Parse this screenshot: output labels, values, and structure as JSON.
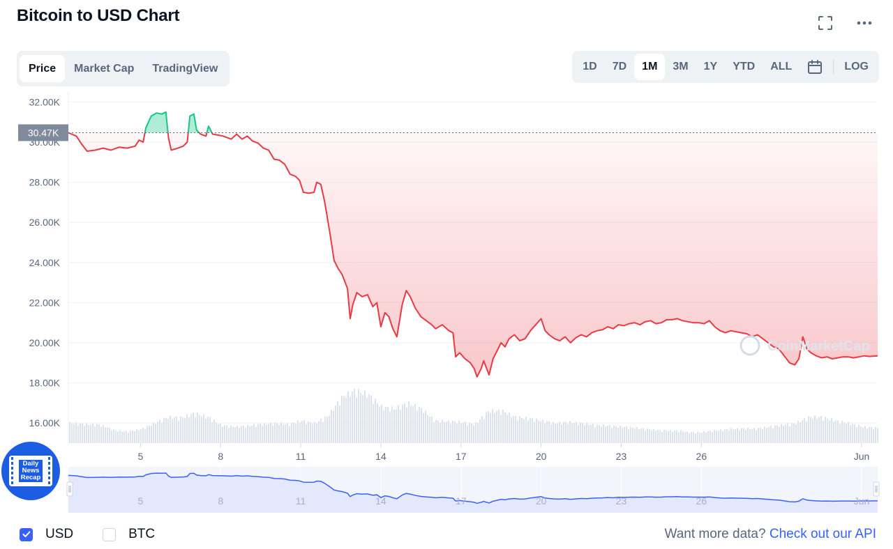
{
  "title": "Bitcoin to USD Chart",
  "header_icons": [
    "fullscreen-icon",
    "more-icon"
  ],
  "tabs": [
    "Price",
    "Market Cap",
    "TradingView"
  ],
  "active_tab": "Price",
  "ranges": [
    "1D",
    "7D",
    "1M",
    "3M",
    "1Y",
    "YTD",
    "ALL"
  ],
  "active_range": "1M",
  "log_label": "LOG",
  "colors": {
    "up": "#16c784",
    "down": "#ea3943",
    "accent": "#3861fb",
    "navigator_line": "#3861fb",
    "navigator_fill": "#e3e8fd"
  },
  "chart_data": {
    "type": "line",
    "title": "",
    "xlabel": "",
    "ylabel": "",
    "ylim": [
      15000,
      32500
    ],
    "yticks": [
      "16.00K",
      "18.00K",
      "20.00K",
      "22.00K",
      "24.00K",
      "26.00K",
      "28.00K",
      "30.00K",
      "32.00K"
    ],
    "ytick_values": [
      16000,
      18000,
      20000,
      22000,
      24000,
      26000,
      28000,
      30000,
      32000
    ],
    "xlim": [
      2.3,
      32.6
    ],
    "xticks": [
      "5",
      "8",
      "11",
      "14",
      "17",
      "20",
      "23",
      "26",
      "Jun"
    ],
    "xtick_values": [
      5,
      8,
      11,
      14,
      17,
      20,
      23,
      26,
      32
    ],
    "reference_value": 30470,
    "reference_label": "30.47K",
    "series": [
      {
        "values": [
          [
            2.3,
            30470
          ],
          [
            2.6,
            30300
          ],
          [
            2.8,
            29900
          ],
          [
            3.0,
            29550
          ],
          [
            3.3,
            29600
          ],
          [
            3.6,
            29700
          ],
          [
            3.9,
            29600
          ],
          [
            4.2,
            29750
          ],
          [
            4.5,
            29700
          ],
          [
            4.8,
            29800
          ],
          [
            4.95,
            30100
          ],
          [
            5.1,
            30000
          ],
          [
            5.2,
            30700
          ],
          [
            5.4,
            31300
          ],
          [
            5.6,
            31450
          ],
          [
            5.8,
            31400
          ],
          [
            5.95,
            31500
          ],
          [
            6.05,
            30200
          ],
          [
            6.15,
            29600
          ],
          [
            6.4,
            29700
          ],
          [
            6.6,
            29800
          ],
          [
            6.75,
            30000
          ],
          [
            6.85,
            31300
          ],
          [
            7.0,
            31400
          ],
          [
            7.1,
            30600
          ],
          [
            7.25,
            30400
          ],
          [
            7.45,
            30300
          ],
          [
            7.55,
            30800
          ],
          [
            7.7,
            30400
          ],
          [
            7.9,
            30350
          ],
          [
            8.1,
            30300
          ],
          [
            8.4,
            30150
          ],
          [
            8.6,
            30400
          ],
          [
            8.8,
            30150
          ],
          [
            9.0,
            30300
          ],
          [
            9.2,
            30050
          ],
          [
            9.4,
            29950
          ],
          [
            9.6,
            29700
          ],
          [
            9.8,
            29600
          ],
          [
            10.0,
            29150
          ],
          [
            10.2,
            29100
          ],
          [
            10.4,
            28900
          ],
          [
            10.6,
            28400
          ],
          [
            10.8,
            28300
          ],
          [
            10.95,
            28100
          ],
          [
            11.1,
            27500
          ],
          [
            11.3,
            27450
          ],
          [
            11.5,
            27500
          ],
          [
            11.6,
            28000
          ],
          [
            11.75,
            27900
          ],
          [
            11.9,
            27000
          ],
          [
            12.1,
            25400
          ],
          [
            12.25,
            24100
          ],
          [
            12.4,
            23700
          ],
          [
            12.55,
            23400
          ],
          [
            12.75,
            22700
          ],
          [
            12.85,
            21200
          ],
          [
            12.95,
            21900
          ],
          [
            13.1,
            22500
          ],
          [
            13.3,
            22300
          ],
          [
            13.5,
            22400
          ],
          [
            13.7,
            21800
          ],
          [
            13.85,
            22000
          ],
          [
            14.0,
            20800
          ],
          [
            14.15,
            21500
          ],
          [
            14.3,
            21300
          ],
          [
            14.45,
            20700
          ],
          [
            14.6,
            20300
          ],
          [
            14.8,
            21900
          ],
          [
            14.95,
            22600
          ],
          [
            15.1,
            22300
          ],
          [
            15.3,
            21700
          ],
          [
            15.5,
            21300
          ],
          [
            15.7,
            21100
          ],
          [
            15.9,
            20900
          ],
          [
            16.05,
            20700
          ],
          [
            16.3,
            20900
          ],
          [
            16.55,
            20600
          ],
          [
            16.7,
            20500
          ],
          [
            16.8,
            19300
          ],
          [
            16.95,
            19500
          ],
          [
            17.15,
            19200
          ],
          [
            17.35,
            19000
          ],
          [
            17.5,
            18700
          ],
          [
            17.6,
            18300
          ],
          [
            17.75,
            18700
          ],
          [
            17.85,
            19100
          ],
          [
            18.05,
            18400
          ],
          [
            18.2,
            19200
          ],
          [
            18.35,
            19600
          ],
          [
            18.5,
            20000
          ],
          [
            18.65,
            19800
          ],
          [
            18.8,
            20200
          ],
          [
            19.0,
            20400
          ],
          [
            19.2,
            20100
          ],
          [
            19.4,
            20200
          ],
          [
            19.6,
            20600
          ],
          [
            19.8,
            20900
          ],
          [
            20.0,
            21200
          ],
          [
            20.15,
            20600
          ],
          [
            20.3,
            20400
          ],
          [
            20.5,
            20200
          ],
          [
            20.7,
            20100
          ],
          [
            20.9,
            20300
          ],
          [
            21.1,
            20000
          ],
          [
            21.3,
            20250
          ],
          [
            21.5,
            20400
          ],
          [
            21.7,
            20300
          ],
          [
            21.9,
            20500
          ],
          [
            22.1,
            20600
          ],
          [
            22.3,
            20650
          ],
          [
            22.5,
            20800
          ],
          [
            22.7,
            20700
          ],
          [
            22.9,
            20900
          ],
          [
            23.1,
            20850
          ],
          [
            23.3,
            20950
          ],
          [
            23.5,
            21000
          ],
          [
            23.7,
            20900
          ],
          [
            23.9,
            21050
          ],
          [
            24.1,
            21100
          ],
          [
            24.3,
            20950
          ],
          [
            24.5,
            21000
          ],
          [
            24.7,
            21150
          ],
          [
            24.9,
            21150
          ],
          [
            25.1,
            21200
          ],
          [
            25.3,
            21100
          ],
          [
            25.5,
            21050
          ],
          [
            25.7,
            21000
          ],
          [
            25.9,
            21000
          ],
          [
            26.1,
            20950
          ],
          [
            26.3,
            21100
          ],
          [
            26.5,
            20800
          ],
          [
            26.7,
            20600
          ],
          [
            26.9,
            20500
          ],
          [
            27.1,
            20600
          ],
          [
            27.3,
            20550
          ],
          [
            27.5,
            20500
          ],
          [
            27.7,
            20450
          ],
          [
            27.9,
            20300
          ],
          [
            28.1,
            20400
          ],
          [
            28.3,
            20200
          ],
          [
            28.5,
            20000
          ],
          [
            28.7,
            19800
          ],
          [
            28.9,
            19700
          ],
          [
            29.1,
            19350
          ],
          [
            29.3,
            19000
          ],
          [
            29.5,
            18900
          ],
          [
            29.65,
            19200
          ],
          [
            29.8,
            20300
          ],
          [
            29.95,
            19700
          ],
          [
            30.1,
            19500
          ],
          [
            30.3,
            19350
          ],
          [
            30.5,
            19250
          ],
          [
            30.7,
            19300
          ],
          [
            30.9,
            19200
          ],
          [
            31.1,
            19250
          ],
          [
            31.3,
            19300
          ],
          [
            31.5,
            19300
          ],
          [
            31.7,
            19250
          ],
          [
            31.9,
            19300
          ],
          [
            32.1,
            19350
          ],
          [
            32.3,
            19320
          ],
          [
            32.6,
            19350
          ]
        ]
      }
    ],
    "volume_relative": [
      [
        2.3,
        0.55
      ],
      [
        3.0,
        0.52
      ],
      [
        3.5,
        0.5
      ],
      [
        4.0,
        0.35
      ],
      [
        4.5,
        0.32
      ],
      [
        5.0,
        0.38
      ],
      [
        5.5,
        0.55
      ],
      [
        6.0,
        0.72
      ],
      [
        6.5,
        0.7
      ],
      [
        7.0,
        0.82
      ],
      [
        7.5,
        0.72
      ],
      [
        8.0,
        0.5
      ],
      [
        8.5,
        0.45
      ],
      [
        9.0,
        0.48
      ],
      [
        9.5,
        0.52
      ],
      [
        10.0,
        0.55
      ],
      [
        10.5,
        0.52
      ],
      [
        11.0,
        0.62
      ],
      [
        11.5,
        0.55
      ],
      [
        12.0,
        0.75
      ],
      [
        12.5,
        1.25
      ],
      [
        13.0,
        1.45
      ],
      [
        13.5,
        1.35
      ],
      [
        14.0,
        1.0
      ],
      [
        14.5,
        0.95
      ],
      [
        15.0,
        1.1
      ],
      [
        15.5,
        0.95
      ],
      [
        16.0,
        0.62
      ],
      [
        16.5,
        0.6
      ],
      [
        17.0,
        0.58
      ],
      [
        17.5,
        0.52
      ],
      [
        18.0,
        0.88
      ],
      [
        18.5,
        0.9
      ],
      [
        19.0,
        0.72
      ],
      [
        19.5,
        0.68
      ],
      [
        20.0,
        0.62
      ],
      [
        20.5,
        0.55
      ],
      [
        21.0,
        0.58
      ],
      [
        21.5,
        0.55
      ],
      [
        22.0,
        0.5
      ],
      [
        22.5,
        0.48
      ],
      [
        23.0,
        0.45
      ],
      [
        23.5,
        0.42
      ],
      [
        24.0,
        0.38
      ],
      [
        24.5,
        0.35
      ],
      [
        25.0,
        0.35
      ],
      [
        25.5,
        0.3
      ],
      [
        26.0,
        0.3
      ],
      [
        26.5,
        0.35
      ],
      [
        27.0,
        0.38
      ],
      [
        27.5,
        0.4
      ],
      [
        28.0,
        0.4
      ],
      [
        28.5,
        0.45
      ],
      [
        29.0,
        0.5
      ],
      [
        29.5,
        0.55
      ],
      [
        30.0,
        0.72
      ],
      [
        30.5,
        0.72
      ],
      [
        31.0,
        0.62
      ],
      [
        31.5,
        0.55
      ],
      [
        32.0,
        0.45
      ],
      [
        32.6,
        0.42
      ]
    ],
    "grid": true,
    "legend": "none"
  },
  "watermark": "CoinMarketCap",
  "currency_options": [
    {
      "label": "USD",
      "checked": true
    },
    {
      "label": "BTC",
      "checked": false
    }
  ],
  "api_text": "Want more data?",
  "api_link": "Check out our API",
  "badge_lines": [
    "Daily",
    "News",
    "Recap"
  ]
}
